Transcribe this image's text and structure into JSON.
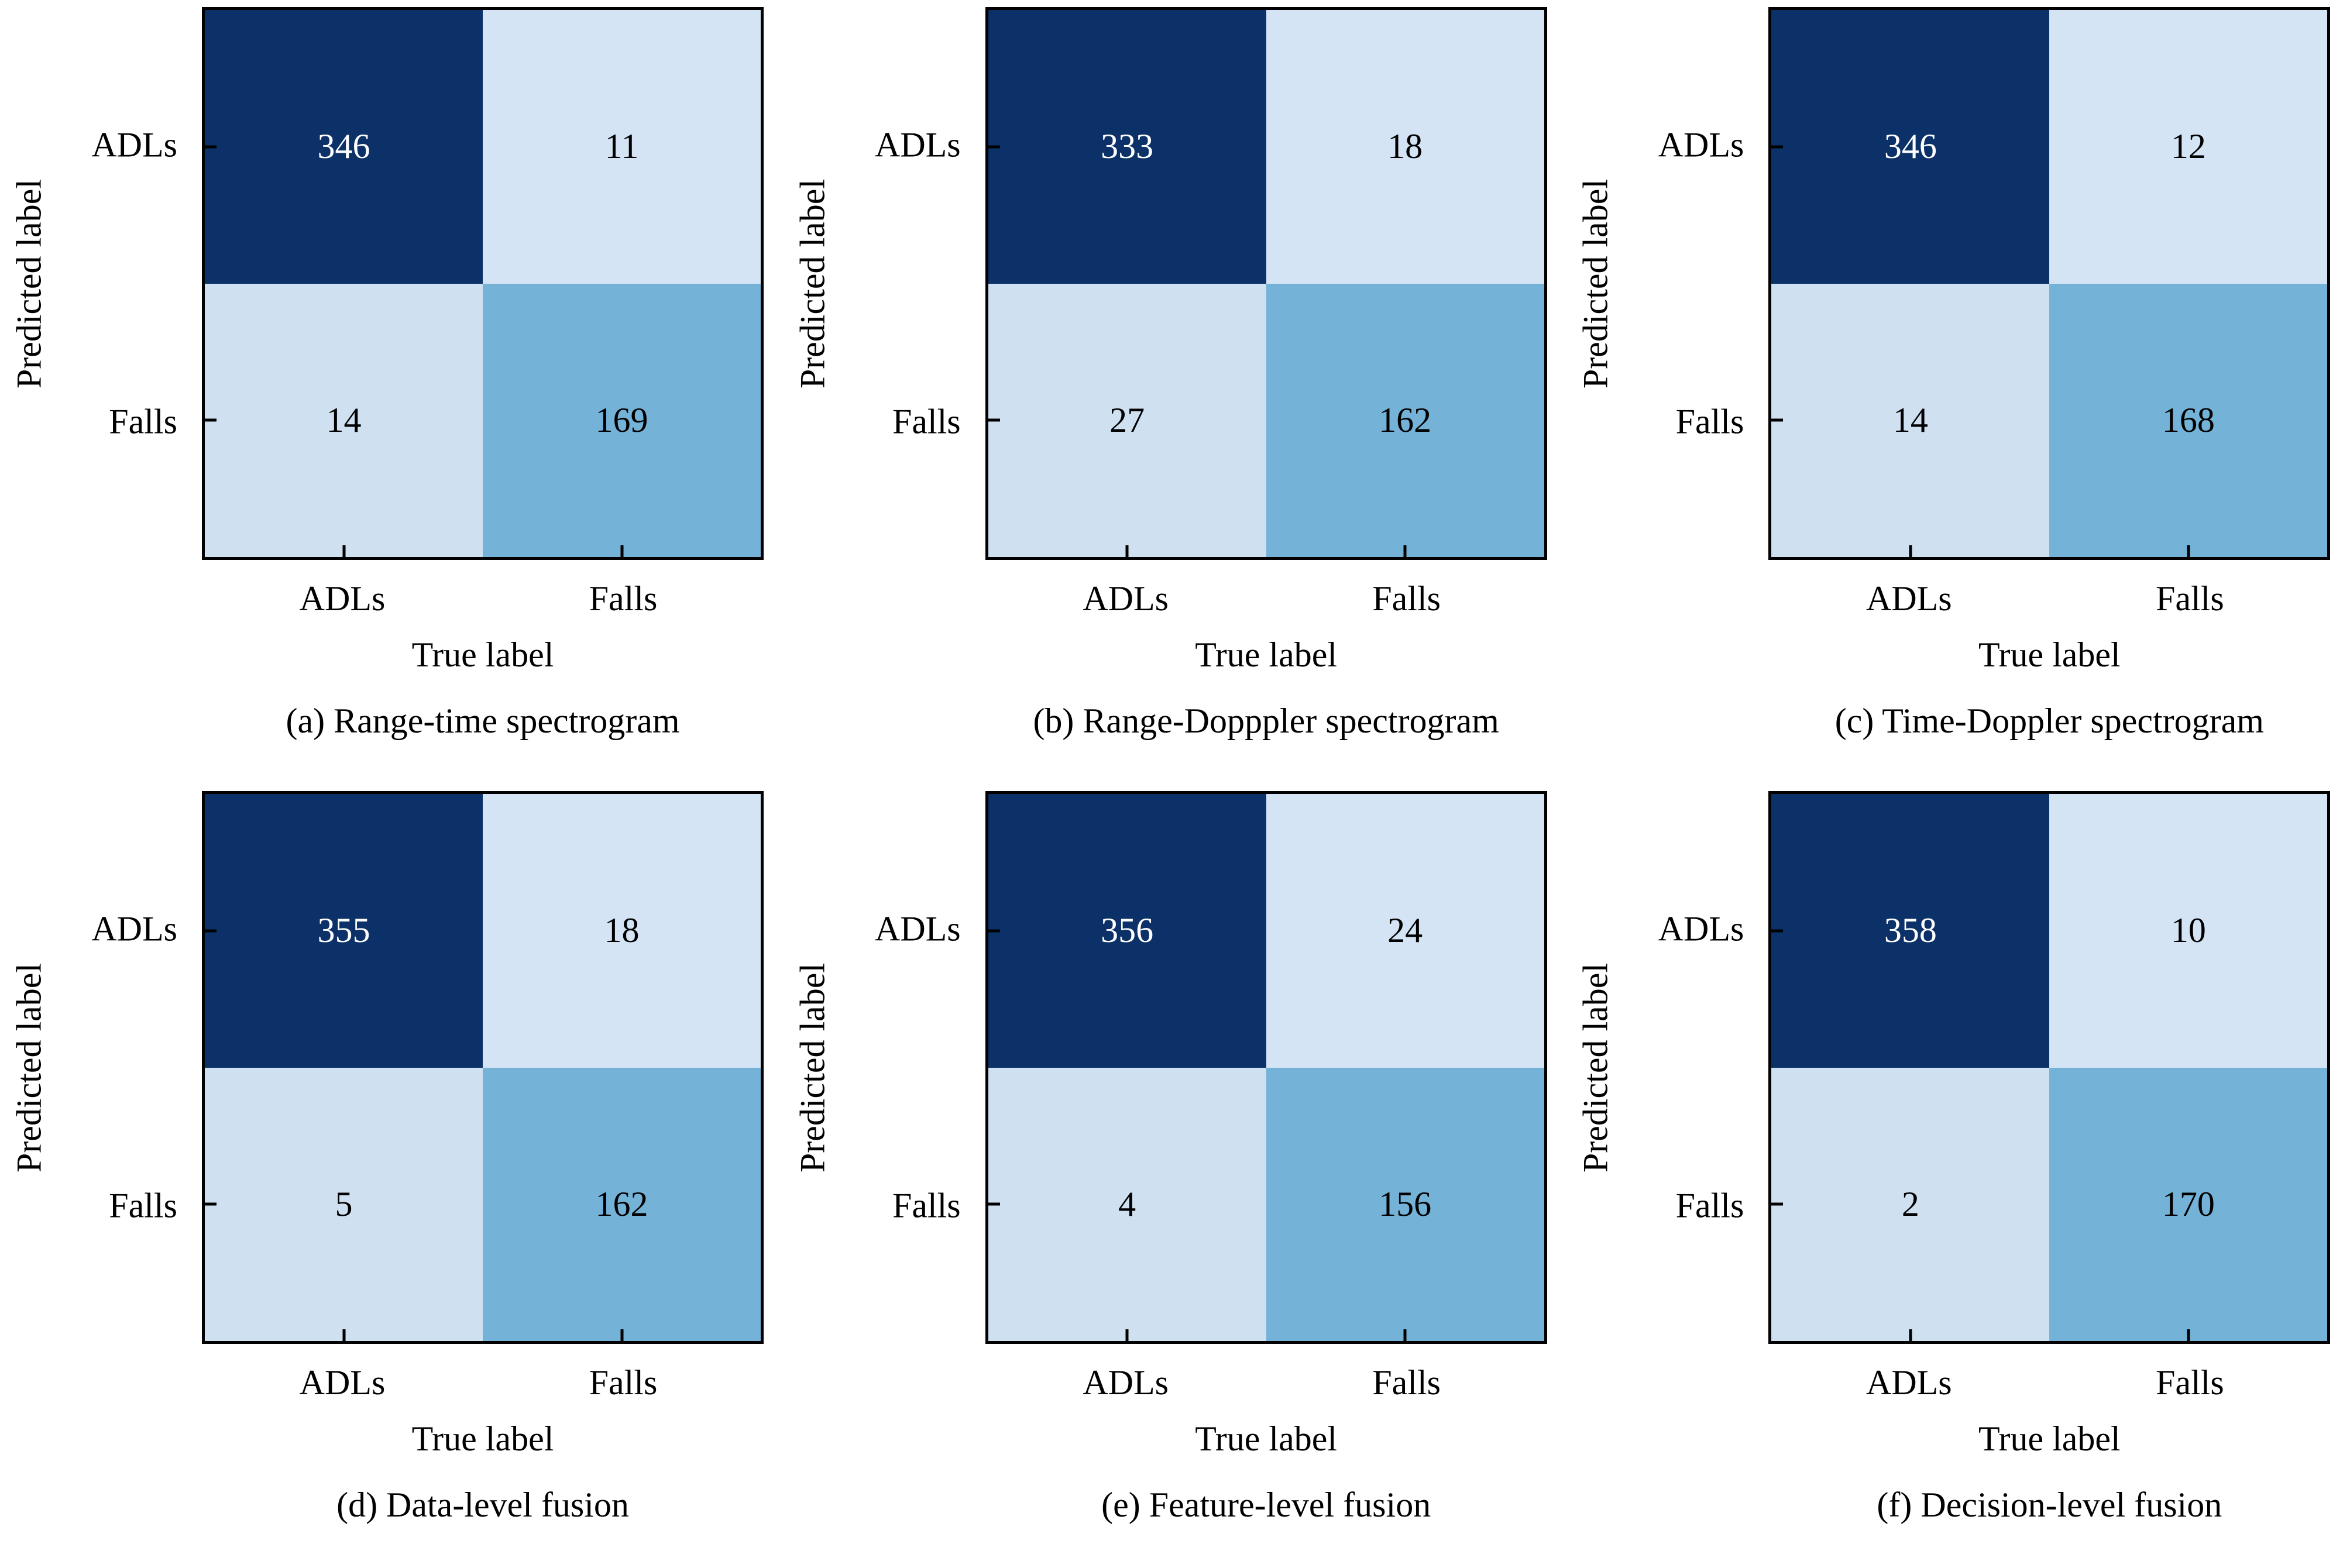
{
  "colors": {
    "background": "#ffffff",
    "frame": "#000000",
    "cell_dark": "#0c3168",
    "cell_light": "#d4e4f4",
    "cell_light2": "#cfe0f1",
    "cell_mid": "#74b2d8",
    "value_on_dark": "#ffffff",
    "value_on_light": "#000000"
  },
  "chart_data": [
    {
      "type": "heatmap",
      "title": "(a) Range-time spectrogram",
      "x_categories": [
        "ADLs",
        "Falls"
      ],
      "y_categories": [
        "ADLs",
        "Falls"
      ],
      "xlabel": "True label",
      "ylabel": "Predicted label",
      "values": [
        [
          346,
          11
        ],
        [
          14,
          169
        ]
      ],
      "grid": false,
      "legend": false
    },
    {
      "type": "heatmap",
      "title": "(b) Range-Dopppler spectrogram",
      "x_categories": [
        "ADLs",
        "Falls"
      ],
      "y_categories": [
        "ADLs",
        "Falls"
      ],
      "xlabel": "True label",
      "ylabel": "Predicted label",
      "values": [
        [
          333,
          18
        ],
        [
          27,
          162
        ]
      ],
      "grid": false,
      "legend": false
    },
    {
      "type": "heatmap",
      "title": "(c) Time-Doppler spectrogram",
      "x_categories": [
        "ADLs",
        "Falls"
      ],
      "y_categories": [
        "ADLs",
        "Falls"
      ],
      "xlabel": "True label",
      "ylabel": "Predicted label",
      "values": [
        [
          346,
          12
        ],
        [
          14,
          168
        ]
      ],
      "grid": false,
      "legend": false
    },
    {
      "type": "heatmap",
      "title": "(d) Data-level fusion",
      "x_categories": [
        "ADLs",
        "Falls"
      ],
      "y_categories": [
        "ADLs",
        "Falls"
      ],
      "xlabel": "True label",
      "ylabel": "Predicted label",
      "values": [
        [
          355,
          18
        ],
        [
          5,
          162
        ]
      ],
      "grid": false,
      "legend": false
    },
    {
      "type": "heatmap",
      "title": "(e) Feature-level fusion",
      "x_categories": [
        "ADLs",
        "Falls"
      ],
      "y_categories": [
        "ADLs",
        "Falls"
      ],
      "xlabel": "True label",
      "ylabel": "Predicted label",
      "values": [
        [
          356,
          24
        ],
        [
          4,
          156
        ]
      ],
      "grid": false,
      "legend": false
    },
    {
      "type": "heatmap",
      "title": "(f) Decision-level fusion",
      "x_categories": [
        "ADLs",
        "Falls"
      ],
      "y_categories": [
        "ADLs",
        "Falls"
      ],
      "xlabel": "True label",
      "ylabel": "Predicted label",
      "values": [
        [
          358,
          10
        ],
        [
          2,
          170
        ]
      ],
      "grid": false,
      "legend": false
    }
  ]
}
